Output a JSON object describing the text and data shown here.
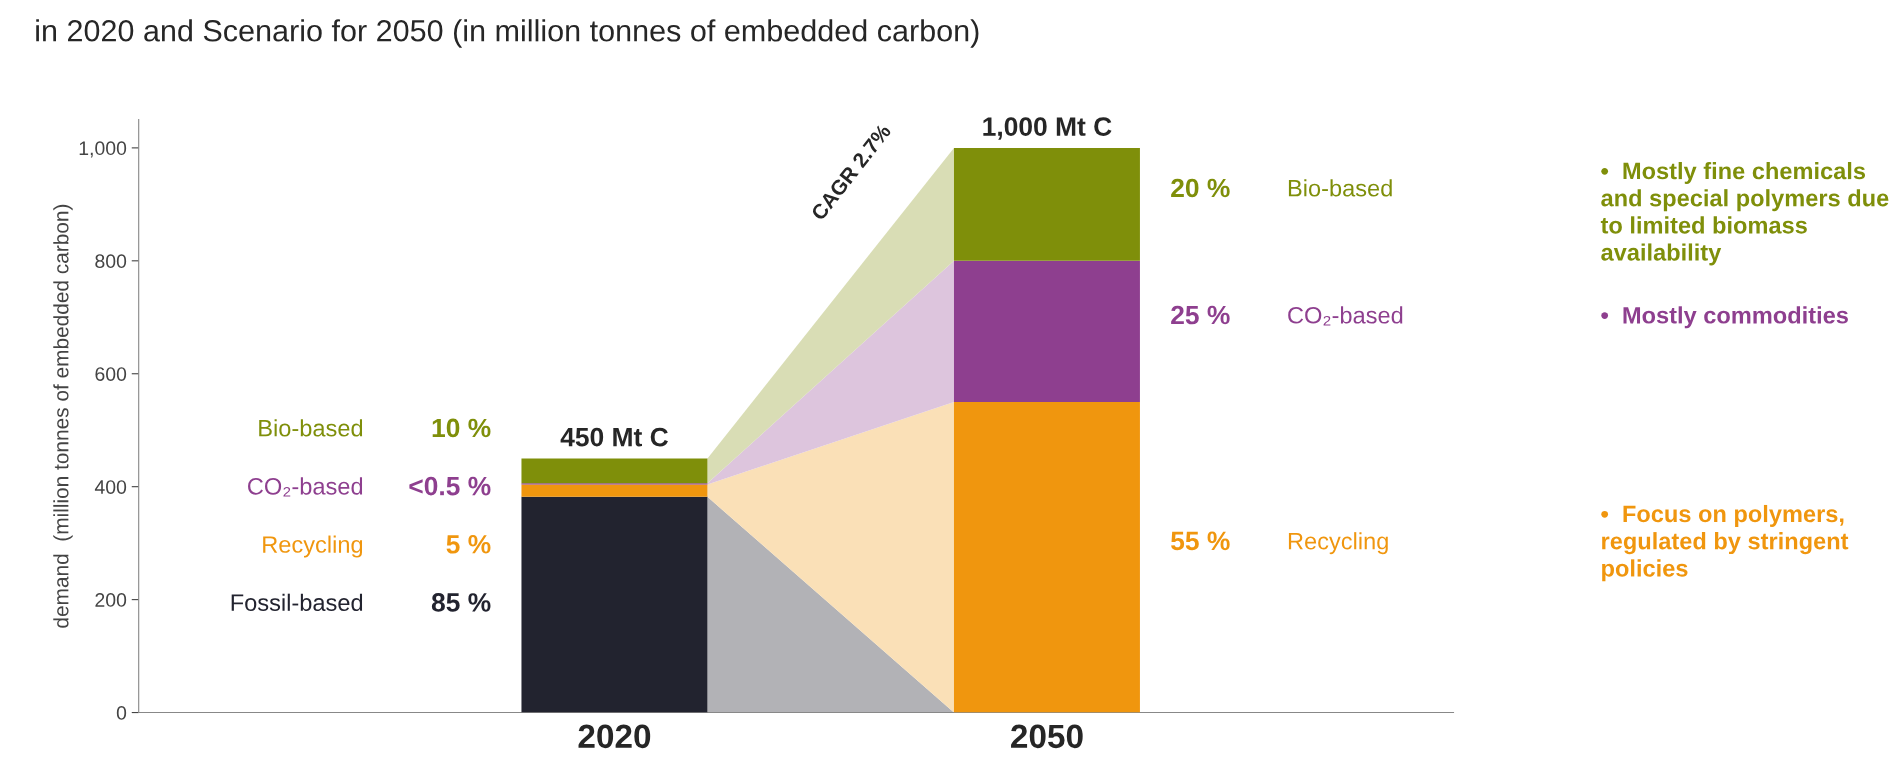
{
  "chart_data": {
    "type": "bar",
    "title": "in 2020 and Scenario for 2050 (in million tonnes of embedded carbon)",
    "ylabel": "demand  (million tonnes of embedded carbon)",
    "categories": [
      "2020",
      "2050"
    ],
    "stacked": true,
    "series": [
      {
        "name": "Fossil-based",
        "color": "#22232f",
        "values": [
          382,
          0
        ]
      },
      {
        "name": "Recycling",
        "color": "#f0960e",
        "values": [
          22,
          550
        ]
      },
      {
        "name": "CO₂-based",
        "color": "#8e3f8f",
        "values": [
          2,
          250
        ]
      },
      {
        "name": "Bio-based",
        "color": "#7f8f0a",
        "values": [
          44,
          200
        ]
      }
    ],
    "totals": [
      "450 Mt C",
      "1,000 Mt C"
    ],
    "ylim": [
      0,
      1050
    ],
    "yticks": [
      0,
      200,
      400,
      600,
      800,
      {
        "value": 1000,
        "label": "1,000"
      }
    ],
    "grid": false,
    "legend": false,
    "annotations": [
      "CAGR 2.7%",
      "85 %",
      "5 %",
      "<0.5 %",
      "10 %",
      "20 %",
      "25 %",
      "55 %",
      "•  Mostly fine chemicals and special polymers due to limited biomass availability",
      "•  Mostly commodities",
      "•  Focus on polymers, regulated by stringent policies"
    ]
  }
}
